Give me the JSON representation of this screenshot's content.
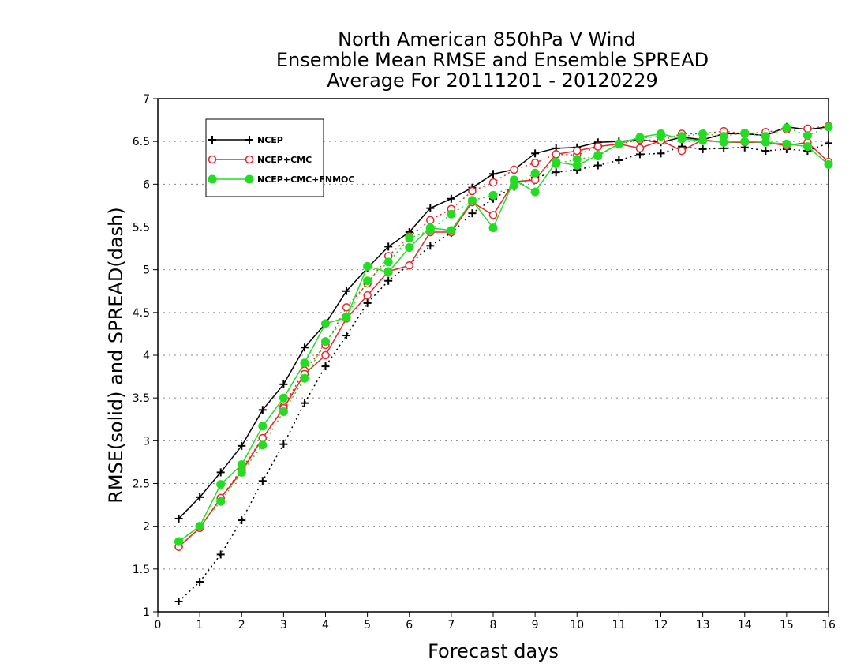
{
  "chart_data": {
    "type": "line",
    "title_lines": [
      "North American 850hPa V Wind",
      "Ensemble Mean RMSE and Ensemble SPREAD",
      "Average For 20111201 - 20120229"
    ],
    "xlabel": "Forecast days",
    "ylabel": "RMSE(solid) and SPREAD(dash)",
    "xlim": [
      0,
      16
    ],
    "ylim": [
      1,
      7
    ],
    "x_ticks": [
      0,
      1,
      2,
      3,
      4,
      5,
      6,
      7,
      8,
      9,
      10,
      11,
      12,
      13,
      14,
      15,
      16
    ],
    "y_ticks": [
      1,
      1.5,
      2,
      2.5,
      3,
      3.5,
      4,
      4.5,
      5,
      5.5,
      6,
      6.5,
      7
    ],
    "grid": "horizontal dotted",
    "legend_position": "top-left",
    "x": [
      0.5,
      1,
      1.5,
      2,
      2.5,
      3,
      3.5,
      4,
      4.5,
      5,
      5.5,
      6,
      6.5,
      7,
      7.5,
      8,
      8.5,
      9,
      9.5,
      10,
      10.5,
      11,
      11.5,
      12,
      12.5,
      13,
      13.5,
      14,
      14.5,
      15,
      15.5,
      16
    ],
    "series": [
      {
        "name": "NCEP",
        "color": "#000000",
        "marker": "plus",
        "rmse": [
          2.09,
          2.34,
          2.63,
          2.94,
          3.36,
          3.66,
          4.09,
          4.37,
          4.75,
          5.02,
          5.27,
          5.44,
          5.72,
          5.83,
          5.96,
          6.12,
          6.17,
          6.36,
          6.42,
          6.43,
          6.49,
          6.5,
          6.52,
          6.49,
          6.55,
          6.52,
          6.59,
          6.59,
          6.57,
          6.67,
          6.64,
          6.67
        ],
        "spread": [
          1.12,
          1.35,
          1.67,
          2.07,
          2.53,
          2.96,
          3.44,
          3.87,
          4.23,
          4.61,
          4.87,
          5.06,
          5.28,
          5.43,
          5.66,
          5.83,
          5.97,
          6.08,
          6.14,
          6.17,
          6.22,
          6.28,
          6.35,
          6.36,
          6.44,
          6.41,
          6.42,
          6.43,
          6.39,
          6.41,
          6.39,
          6.48
        ]
      },
      {
        "name": "NCEP+CMC",
        "color": "#e8262b",
        "marker": "open-circle",
        "rmse": [
          1.76,
          1.98,
          2.33,
          2.64,
          3.03,
          3.38,
          3.78,
          4.0,
          4.43,
          4.7,
          4.98,
          5.05,
          5.44,
          5.44,
          5.79,
          5.64,
          6.03,
          6.05,
          6.35,
          6.39,
          6.44,
          6.47,
          6.42,
          6.51,
          6.39,
          6.52,
          6.49,
          6.49,
          6.49,
          6.45,
          6.49,
          6.26
        ],
        "spread": [
          1.76,
          1.98,
          2.33,
          2.67,
          3.03,
          3.4,
          3.82,
          4.12,
          4.56,
          4.84,
          5.16,
          5.39,
          5.58,
          5.71,
          5.92,
          6.02,
          6.17,
          6.25,
          6.35,
          6.34,
          6.44,
          6.47,
          6.52,
          6.51,
          6.59,
          6.59,
          6.62,
          6.59,
          6.61,
          6.64,
          6.65,
          6.68
        ]
      },
      {
        "name": "NCEP+CMC+FNMOC",
        "color": "#22dd22",
        "marker": "filled-circle",
        "rmse": [
          1.82,
          2.0,
          2.49,
          2.72,
          3.17,
          3.5,
          3.91,
          4.37,
          4.44,
          5.04,
          4.97,
          5.26,
          5.49,
          5.46,
          5.81,
          5.49,
          6.05,
          5.91,
          6.26,
          6.22,
          6.34,
          6.47,
          6.55,
          6.59,
          6.53,
          6.51,
          6.49,
          6.5,
          6.49,
          6.47,
          6.44,
          6.23
        ],
        "spread": [
          1.82,
          2.0,
          2.29,
          2.63,
          2.95,
          3.34,
          3.73,
          4.16,
          4.45,
          4.87,
          5.09,
          5.37,
          5.46,
          5.65,
          5.81,
          5.87,
          5.99,
          6.13,
          6.24,
          6.29,
          6.33,
          6.47,
          6.54,
          6.56,
          6.56,
          6.59,
          6.56,
          6.6,
          6.56,
          6.66,
          6.57,
          6.67
        ]
      }
    ]
  }
}
